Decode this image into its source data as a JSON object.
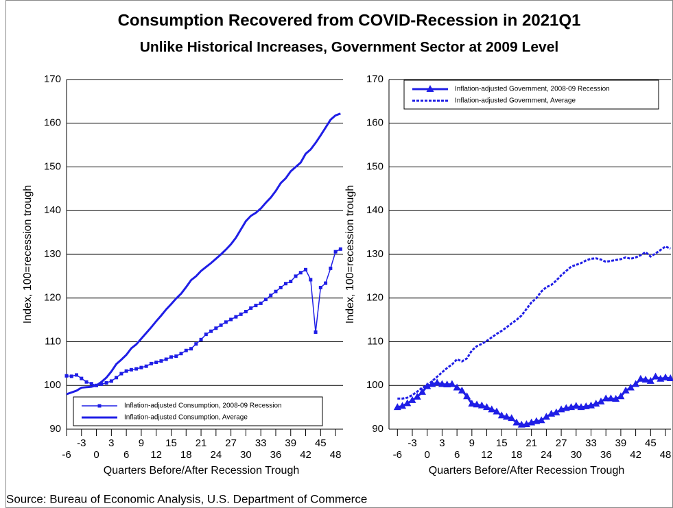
{
  "title": "Consumption Recovered from COVID-Recession in 2021Q1",
  "subtitle": "Unlike Historical Increases, Government Sector at 2009 Level",
  "source": "Source: Bureau of Economic Analysis, U.S. Department of Commerce",
  "chart_data": [
    {
      "type": "line",
      "xlabel": "Quarters Before/After Recession Trough",
      "ylabel": "Index, 100=recession trough",
      "x": [
        -6,
        -5,
        -4,
        -3,
        -2,
        -1,
        0,
        1,
        2,
        3,
        4,
        5,
        6,
        7,
        8,
        9,
        10,
        11,
        12,
        13,
        14,
        15,
        16,
        17,
        18,
        19,
        20,
        21,
        22,
        23,
        24,
        25,
        26,
        27,
        28,
        29,
        30,
        31,
        32,
        33,
        34,
        35,
        36,
        37,
        38,
        39,
        40,
        41,
        42,
        43,
        44,
        45,
        46,
        47,
        48,
        49
      ],
      "series": [
        {
          "name": "Inflation-adjusted Consumption, 2008-09 Recession",
          "color": "#1f1ee6",
          "marker": "square",
          "style": "thin",
          "values": [
            102.2,
            102.1,
            102.4,
            101.6,
            100.8,
            100.4,
            100.0,
            100.3,
            100.6,
            101.0,
            101.8,
            102.7,
            103.3,
            103.6,
            103.8,
            104.1,
            104.4,
            105.0,
            105.3,
            105.6,
            106.0,
            106.5,
            106.7,
            107.3,
            108.0,
            108.4,
            109.5,
            110.5,
            111.7,
            112.4,
            113.1,
            113.8,
            114.5,
            115.1,
            115.7,
            116.3,
            116.9,
            117.7,
            118.3,
            118.8,
            119.7,
            120.6,
            121.5,
            122.4,
            123.3,
            123.8,
            125.0,
            125.8,
            126.5,
            124.2,
            112.2,
            122.4,
            123.4,
            126.8,
            130.6,
            131.2
          ]
        },
        {
          "name": "Inflation-adjusted Consumption, Average",
          "color": "#1f1ee6",
          "marker": null,
          "style": "thick",
          "values": [
            98.0,
            98.4,
            98.8,
            99.5,
            99.6,
            99.7,
            100.0,
            100.8,
            101.8,
            103.2,
            104.9,
            105.9,
            107.0,
            108.5,
            109.4,
            110.7,
            112.0,
            113.3,
            114.7,
            116.0,
            117.4,
            118.6,
            119.9,
            121.0,
            122.5,
            124.1,
            125.0,
            126.2,
            127.1,
            128.0,
            129.0,
            130.0,
            131.1,
            132.3,
            133.8,
            135.7,
            137.6,
            138.8,
            139.5,
            140.5,
            141.8,
            143.0,
            144.5,
            146.3,
            147.4,
            149.0,
            150.0,
            151.0,
            153.0,
            154.0,
            155.5,
            157.2,
            159.0,
            160.8,
            161.8,
            162.2
          ]
        }
      ],
      "xlim": [
        -6,
        49.5
      ],
      "ylim": [
        90,
        170
      ],
      "xticks": [
        -6,
        -3,
        0,
        3,
        6,
        9,
        12,
        15,
        18,
        21,
        24,
        27,
        30,
        33,
        36,
        39,
        42,
        45,
        48
      ],
      "yticks": [
        90,
        100,
        110,
        120,
        130,
        140,
        150,
        160,
        170
      ],
      "grid": true,
      "legend": "lower center"
    },
    {
      "type": "line",
      "xlabel": "Quarters Before/After Recession Trough",
      "ylabel": "Index, 100=recession trough",
      "x": [
        -6,
        -5,
        -4,
        -3,
        -2,
        -1,
        0,
        1,
        2,
        3,
        4,
        5,
        6,
        7,
        8,
        9,
        10,
        11,
        12,
        13,
        14,
        15,
        16,
        17,
        18,
        19,
        20,
        21,
        22,
        23,
        24,
        25,
        26,
        27,
        28,
        29,
        30,
        31,
        32,
        33,
        34,
        35,
        36,
        37,
        38,
        39,
        40,
        41,
        42,
        43,
        44,
        45,
        46,
        47,
        48,
        49
      ],
      "series": [
        {
          "name": "Inflation-adjusted Government, 2008-09 Recession",
          "color": "#1f1ee6",
          "marker": "triangle",
          "style": "thick",
          "values": [
            95.0,
            95.3,
            95.9,
            96.6,
            97.4,
            98.5,
            99.8,
            100.3,
            100.6,
            100.3,
            100.2,
            100.3,
            99.5,
            98.8,
            97.5,
            95.8,
            95.6,
            95.4,
            95.0,
            94.5,
            94.0,
            93.1,
            92.8,
            92.5,
            91.5,
            91.0,
            91.1,
            91.5,
            91.8,
            92.0,
            92.8,
            93.5,
            93.8,
            94.5,
            94.8,
            95.0,
            95.3,
            95.0,
            95.2,
            95.4,
            95.8,
            96.3,
            97.0,
            97.0,
            96.9,
            97.5,
            98.8,
            99.5,
            100.3,
            101.5,
            101.3,
            101.0,
            102.0,
            101.5,
            101.8,
            101.6
          ]
        },
        {
          "name": "Inflation-adjusted Government, Average",
          "color": "#1f1ee6",
          "marker": null,
          "style": "dotted",
          "values": [
            97.0,
            97.0,
            97.2,
            97.8,
            98.6,
            99.5,
            100.0,
            101.0,
            102.0,
            103.0,
            104.0,
            104.8,
            106.0,
            105.5,
            106.2,
            108.0,
            109.0,
            109.5,
            110.2,
            111.0,
            111.8,
            112.5,
            113.3,
            114.2,
            115.0,
            116.0,
            117.5,
            119.0,
            120.0,
            121.5,
            122.5,
            123.0,
            124.0,
            125.2,
            126.2,
            127.2,
            127.6,
            128.0,
            128.6,
            129.0,
            129.1,
            128.8,
            128.3,
            128.5,
            128.7,
            128.9,
            129.3,
            129.0,
            129.3,
            129.8,
            130.5,
            129.5,
            130.2,
            131.0,
            131.8,
            131.3
          ]
        }
      ],
      "xlim": [
        -7.7,
        49.1
      ],
      "ylim": [
        90,
        170
      ],
      "xticks": [
        -6,
        -3,
        0,
        3,
        6,
        9,
        12,
        15,
        18,
        21,
        24,
        27,
        30,
        33,
        36,
        39,
        42,
        45,
        48
      ],
      "yticks": [
        90,
        100,
        110,
        120,
        130,
        140,
        150,
        160,
        170
      ],
      "grid": true,
      "legend": "upper right"
    }
  ]
}
